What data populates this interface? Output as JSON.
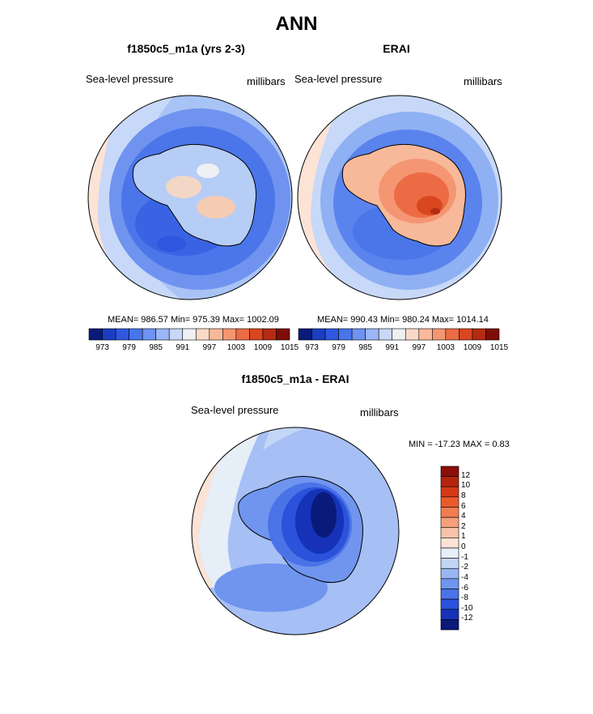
{
  "page": {
    "title": "ANN"
  },
  "panels": [
    {
      "id": "model",
      "title": "f1850c5_m1a (yrs 2-3)",
      "left_label": "Sea-level pressure",
      "right_label": "millibars",
      "stats": "MEAN= 986.57  Min= 975.39  Max= 1002.09",
      "colorbar": {
        "colors": [
          "#0a1a7a",
          "#1b3dc2",
          "#2f58e0",
          "#4874ec",
          "#6e93f2",
          "#9ab6f6",
          "#c7d8f8",
          "#eef0f4",
          "#f9d9c8",
          "#f7b99a",
          "#f49672",
          "#ec6b45",
          "#d9471f",
          "#b52a12",
          "#7e0d06"
        ],
        "ticks": [
          "973",
          "979",
          "985",
          "991",
          "997",
          "1003",
          "1009",
          "1015"
        ]
      }
    },
    {
      "id": "obs",
      "title": "ERAI",
      "left_label": "Sea-level pressure",
      "right_label": "millibars",
      "stats": "MEAN= 990.43  Min= 980.24  Max= 1014.14",
      "colorbar": {
        "colors": [
          "#0a1a7a",
          "#1b3dc2",
          "#2f58e0",
          "#4874ec",
          "#6e93f2",
          "#9ab6f6",
          "#c7d8f8",
          "#eef0f4",
          "#f9d9c8",
          "#f7b99a",
          "#f49672",
          "#ec6b45",
          "#d9471f",
          "#b52a12",
          "#7e0d06"
        ],
        "ticks": [
          "973",
          "979",
          "985",
          "991",
          "997",
          "1003",
          "1009",
          "1015"
        ]
      }
    },
    {
      "id": "diff",
      "title": "f1850c5_m1a - ERAI",
      "left_label": "Sea-level pressure",
      "right_label": "millibars",
      "stats": "MIN = -17.23 MAX =   0.83",
      "colorbar": {
        "colors": [
          "#8a0f08",
          "#b4240f",
          "#d43a18",
          "#ea5a2c",
          "#f27d4f",
          "#f5a07c",
          "#f8c3aa",
          "#fbe3d6",
          "#e6eef8",
          "#c3d6f6",
          "#98b6f2",
          "#7095ee",
          "#4a73e8",
          "#2a52da",
          "#1532b8",
          "#0a1a7a"
        ],
        "ticks": [
          "12",
          "10",
          "8",
          "6",
          "4",
          "2",
          "1",
          "0",
          "-1",
          "-2",
          "-4",
          "-6",
          "-8",
          "-10",
          "-12"
        ]
      }
    }
  ],
  "colors": {
    "ocean_model": "#3f6ae8",
    "ocean_obs": "#3f6ae8",
    "ocean_diff": "#a6bff5"
  }
}
